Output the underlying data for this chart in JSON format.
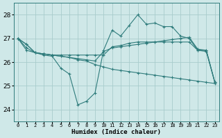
{
  "xlabel": "Humidex (Indice chaleur)",
  "bg_color": "#cfe8e8",
  "grid_color": "#a8cccc",
  "line_color": "#2e7b7b",
  "xlim": [
    -0.5,
    23.5
  ],
  "ylim": [
    23.5,
    28.5
  ],
  "yticks": [
    24,
    25,
    26,
    27,
    28
  ],
  "xticks": [
    0,
    1,
    2,
    3,
    4,
    5,
    6,
    7,
    8,
    9,
    10,
    11,
    12,
    13,
    14,
    15,
    16,
    17,
    18,
    19,
    20,
    21,
    22,
    23
  ],
  "xlabel_fontsize": 6.5,
  "xtick_fontsize": 5.0,
  "ytick_fontsize": 6.5,
  "series": [
    [
      27.0,
      26.75,
      26.4,
      26.3,
      26.25,
      25.75,
      25.5,
      24.2,
      24.35,
      24.7,
      26.5,
      27.35,
      27.1,
      27.55,
      28.0,
      27.6,
      27.65,
      27.5,
      27.5,
      27.1,
      27.0,
      26.5,
      26.45,
      25.15
    ],
    [
      27.0,
      26.6,
      26.4,
      26.35,
      26.3,
      26.25,
      26.2,
      26.15,
      26.1,
      26.05,
      26.45,
      26.6,
      26.65,
      26.7,
      26.75,
      26.8,
      26.85,
      26.9,
      26.95,
      27.0,
      27.05,
      26.55,
      26.5,
      25.15
    ],
    [
      27.0,
      26.75,
      26.4,
      26.35,
      26.3,
      26.3,
      26.3,
      26.3,
      26.3,
      26.3,
      26.3,
      26.65,
      26.7,
      26.8,
      26.85,
      26.85,
      26.85,
      26.85,
      26.85,
      26.85,
      26.85,
      26.5,
      26.5,
      25.15
    ],
    [
      27.0,
      26.5,
      26.4,
      26.35,
      26.3,
      26.25,
      26.2,
      26.1,
      26.05,
      25.9,
      25.8,
      25.7,
      25.65,
      25.6,
      25.55,
      25.5,
      25.45,
      25.4,
      25.35,
      25.3,
      25.25,
      25.2,
      25.15,
      25.1
    ]
  ]
}
